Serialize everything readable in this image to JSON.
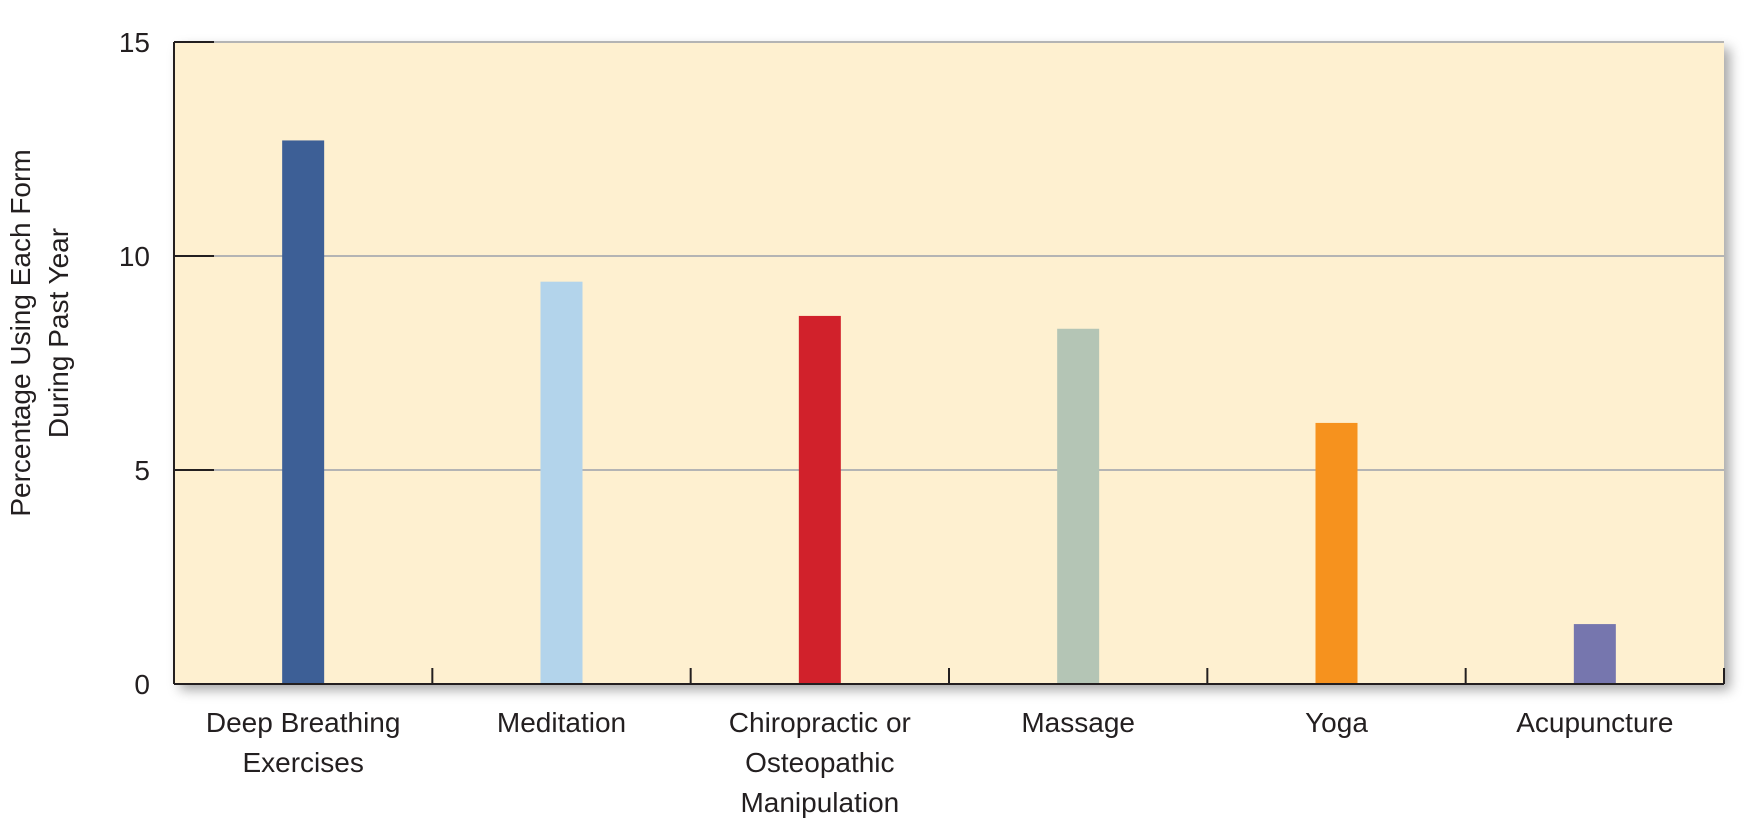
{
  "chart_data": {
    "type": "bar",
    "title": "",
    "xlabel": "",
    "ylabel": [
      "Percentage Using Each Form",
      "During Past Year"
    ],
    "ylim": [
      0,
      15
    ],
    "yticks": [
      0,
      5,
      10,
      15
    ],
    "grid": true,
    "categories": [
      [
        "Deep Breathing",
        "Exercises"
      ],
      [
        "Meditation"
      ],
      [
        "Chiropractic or",
        "Osteopathic",
        "Manipulation"
      ],
      [
        "Massage"
      ],
      [
        "Yoga"
      ],
      [
        "Acupuncture"
      ]
    ],
    "values": [
      12.7,
      9.4,
      8.6,
      8.3,
      6.1,
      1.4
    ],
    "colors": [
      "#3d5f96",
      "#b3d4eb",
      "#d1212b",
      "#b4c5b5",
      "#f6921e",
      "#7676ae"
    ],
    "background": "#fef0d0",
    "grid_color": "#b4b4b4"
  }
}
